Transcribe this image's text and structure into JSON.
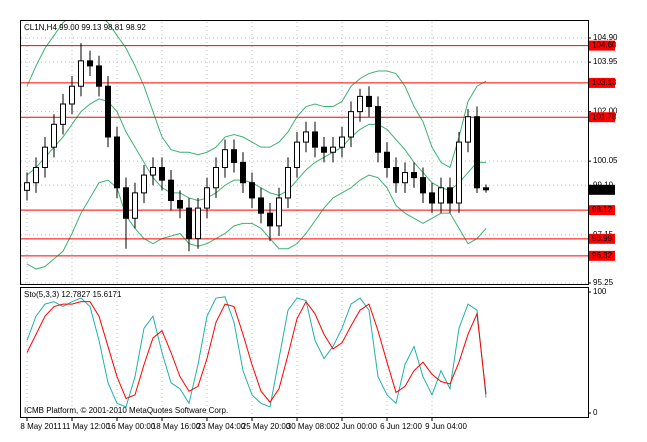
{
  "chart_data": [
    {
      "type": "candlestick",
      "title": "CL1N,H4 99.00 99.13 98.81 98.92",
      "categories": [
        "8 May 2011",
        null,
        null,
        null,
        null,
        "11 May 12:00",
        null,
        null,
        null,
        null,
        "16 May 00:00",
        null,
        null,
        null,
        null,
        "18 May 16:00",
        null,
        null,
        null,
        null,
        "23 May 04:00",
        null,
        null,
        null,
        null,
        "25 May 20:00",
        null,
        null,
        null,
        null,
        "30 May 08:00",
        null,
        null,
        null,
        null,
        "2 Jun 00:00",
        null,
        null,
        null,
        null,
        "6 Jun 12:00",
        null,
        null,
        null,
        null,
        "9 Jun 04:00",
        null,
        null,
        null,
        null,
        null,
        null
      ],
      "open": [
        98.9,
        99.2,
        99.8,
        100.6,
        101.5,
        102.3,
        103.0,
        104.0,
        103.8,
        103.0,
        101.0,
        99.0,
        97.8,
        98.8,
        99.5,
        99.8,
        99.3,
        98.5,
        98.2,
        97.0,
        98.2,
        99.0,
        99.8,
        100.5,
        100.0,
        99.2,
        98.6,
        98.0,
        97.5,
        98.6,
        99.8,
        100.8,
        101.2,
        100.6,
        100.4,
        100.6,
        101.0,
        102.0,
        102.6,
        102.2,
        100.4,
        99.8,
        99.2,
        99.6,
        99.4,
        98.8,
        98.4,
        99.0,
        98.4,
        100.8,
        101.8,
        99.0
      ],
      "high": [
        99.6,
        100.2,
        101.0,
        101.9,
        102.7,
        103.4,
        104.7,
        104.4,
        104.2,
        103.4,
        101.4,
        99.4,
        99.2,
        99.9,
        100.2,
        100.2,
        99.7,
        98.9,
        98.6,
        98.6,
        99.4,
        100.2,
        100.9,
        100.9,
        100.4,
        99.6,
        99.0,
        98.4,
        99.0,
        100.2,
        101.2,
        101.6,
        101.6,
        101.0,
        101.0,
        101.4,
        102.4,
        102.9,
        103.0,
        102.6,
        100.8,
        100.2,
        100.0,
        100.0,
        99.8,
        99.2,
        99.4,
        99.4,
        101.2,
        102.1,
        102.2,
        99.13
      ],
      "low": [
        98.5,
        98.8,
        99.4,
        100.2,
        101.1,
        101.9,
        102.6,
        103.4,
        102.6,
        100.6,
        98.6,
        96.6,
        97.4,
        98.4,
        99.1,
        98.9,
        98.1,
        97.8,
        96.5,
        96.6,
        97.8,
        98.6,
        99.4,
        99.6,
        98.8,
        98.2,
        97.6,
        96.9,
        97.1,
        98.2,
        99.4,
        100.4,
        100.2,
        100.0,
        100.0,
        100.2,
        100.6,
        101.6,
        101.8,
        100.0,
        99.4,
        98.8,
        98.8,
        99.0,
        98.4,
        98.0,
        98.0,
        98.0,
        98.0,
        100.4,
        98.8,
        98.81
      ],
      "close": [
        99.2,
        99.8,
        100.6,
        101.5,
        102.3,
        103.0,
        104.0,
        103.8,
        103.0,
        101.0,
        99.0,
        97.8,
        98.8,
        99.5,
        99.8,
        99.3,
        98.5,
        98.2,
        97.0,
        98.2,
        99.0,
        99.8,
        100.5,
        100.0,
        99.2,
        98.6,
        98.0,
        97.5,
        98.6,
        99.8,
        100.8,
        101.2,
        100.6,
        100.4,
        100.6,
        101.0,
        102.0,
        102.6,
        102.2,
        100.4,
        99.8,
        99.2,
        99.6,
        99.4,
        98.8,
        98.4,
        99.0,
        98.4,
        100.8,
        101.8,
        99.0,
        98.92
      ],
      "ylim": [
        95.25,
        105.53
      ],
      "yticks": [
        {
          "value": 104.9,
          "label": "104.90"
        },
        103.95,
        {
          "value": 102.0,
          "label": "102.00"
        },
        100.05,
        {
          "value": 99.1,
          "label": "99.10"
        },
        97.15,
        95.25
      ],
      "grid": true,
      "bands": {
        "color": "#3cb371",
        "series": [
          {
            "values": [
              103.0,
              103.8,
              104.5,
              105.0,
              105.5,
              105.8,
              106.0,
              106.0,
              105.8,
              105.5,
              105.0,
              104.5,
              103.8,
              103.0,
              102.0,
              101.0,
              100.5,
              100.4,
              100.4,
              100.3,
              100.4,
              100.6,
              101.0,
              101.1,
              101.0,
              100.8,
              100.6,
              100.6,
              100.8,
              101.2,
              101.8,
              102.2,
              102.3,
              102.2,
              102.2,
              102.4,
              103.0,
              103.3,
              103.5,
              103.6,
              103.6,
              103.5,
              103.0,
              102.2,
              101.6,
              100.6,
              100.0,
              99.8,
              101.0,
              102.4,
              103.0,
              103.2
            ]
          },
          {
            "values": [
              99.5,
              99.8,
              100.2,
              100.6,
              101.0,
              101.5,
              102.0,
              102.3,
              102.5,
              102.4,
              102.0,
              101.2,
              100.6,
              100.0,
              99.4,
              99.0,
              98.8,
              98.8,
              98.6,
              98.5,
              98.6,
              98.8,
              99.1,
              99.3,
              99.3,
              99.2,
              99.0,
              98.8,
              98.7,
              98.9,
              99.3,
              99.7,
              100.0,
              100.2,
              100.4,
              100.6,
              101.0,
              101.3,
              101.5,
              101.5,
              101.3,
              100.9,
              100.5,
              100.0,
              99.6,
              99.2,
              99.0,
              98.9,
              99.2,
              99.6,
              100.0,
              100.0
            ]
          },
          {
            "values": [
              96.0,
              95.8,
              95.9,
              96.2,
              96.5,
              97.2,
              98.0,
              98.6,
              99.2,
              99.3,
              99.0,
              97.9,
              97.4,
              97.0,
              96.8,
              97.0,
              97.1,
              97.2,
              96.8,
              96.7,
              96.8,
              97.0,
              97.2,
              97.5,
              97.6,
              97.6,
              97.4,
              97.0,
              96.6,
              96.6,
              96.8,
              97.2,
              97.7,
              98.2,
              98.6,
              98.8,
              99.0,
              99.3,
              99.5,
              99.4,
              99.0,
              98.3,
              98.0,
              97.8,
              97.6,
              97.8,
              98.0,
              98.0,
              97.4,
              96.8,
              97.0,
              97.4
            ]
          }
        ]
      },
      "levels": {
        "color": "#ff0000",
        "values": [
          {
            "value": 104.6,
            "label": "104.60"
          },
          {
            "value": 103.13,
            "label": "103.13"
          },
          {
            "value": 101.78,
            "label": "101.78"
          },
          {
            "value": 98.12,
            "label": "98.12"
          },
          {
            "value": 96.99,
            "label": "96.99"
          },
          {
            "value": 96.32,
            "label": "96.32"
          }
        ]
      }
    },
    {
      "type": "line",
      "title": "Sto(5,3,3) 12.7827 15.6171",
      "ylim": [
        0,
        100
      ],
      "yticks": [
        100,
        0
      ],
      "series": [
        {
          "color": "#20b2aa",
          "values": [
            60,
            80,
            90,
            92,
            88,
            92,
            95,
            88,
            60,
            25,
            8,
            5,
            30,
            70,
            80,
            50,
            25,
            20,
            8,
            40,
            80,
            95,
            96,
            75,
            35,
            15,
            8,
            5,
            45,
            85,
            95,
            93,
            60,
            45,
            55,
            70,
            90,
            95,
            85,
            30,
            15,
            8,
            40,
            55,
            30,
            15,
            35,
            20,
            70,
            90,
            85,
            12.7827
          ]
        },
        {
          "color": "#ff0000",
          "values": [
            50,
            65,
            80,
            88,
            90,
            90,
            92,
            92,
            80,
            55,
            30,
            12,
            15,
            40,
            62,
            68,
            50,
            30,
            18,
            22,
            45,
            75,
            90,
            88,
            65,
            40,
            18,
            9,
            20,
            48,
            78,
            92,
            82,
            65,
            53,
            58,
            72,
            85,
            90,
            68,
            42,
            17,
            22,
            35,
            42,
            32,
            26,
            24,
            42,
            65,
            82,
            15.6171
          ]
        }
      ],
      "footer": "ICMB Platform, © 2001-2010 MetaQuotes Software Corp."
    }
  ]
}
